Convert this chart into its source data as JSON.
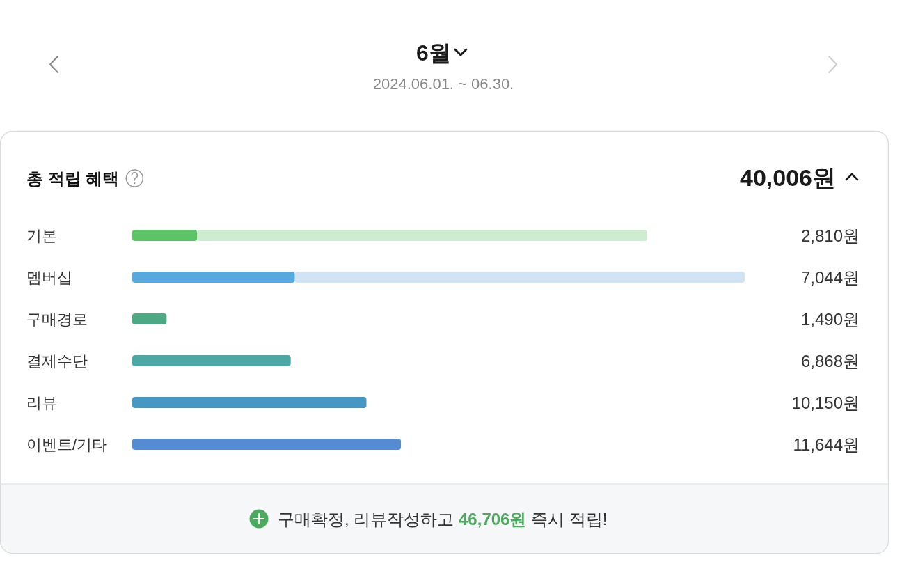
{
  "chart_data": {
    "type": "bar",
    "orientation": "horizontal",
    "stacked": true,
    "tick_labels": "y",
    "title": "6월",
    "subtitle": "2024.06.01. ~ 06.30.",
    "categories": [
      "기본",
      "멤버십",
      "구매경로",
      "결제수단",
      "리뷰",
      "이벤트/기타"
    ],
    "series": [
      {
        "colors": [
          "#5cc466",
          "#56a9dc",
          "#4ea883",
          "#4ca8a4",
          "#4598c4",
          "#548bd1"
        ],
        "values": [
          2810,
          7044,
          1490,
          6868,
          10150,
          11644
        ],
        "value_labels": [
          "2,810원",
          "7,044원",
          "1,490원",
          "6,868원",
          "10,150원",
          "11,644원"
        ]
      },
      {
        "colors": [
          "#cdecd0",
          "#d0e4f4",
          null,
          null,
          null,
          null
        ],
        "values": [
          19500,
          19500,
          null,
          null,
          null,
          null
        ]
      }
    ],
    "annotations": [
      "총 적립 혜택",
      "40,006원",
      "구매확정, 리뷰작성하고 46,706원 즉시 적립!"
    ]
  }
}
